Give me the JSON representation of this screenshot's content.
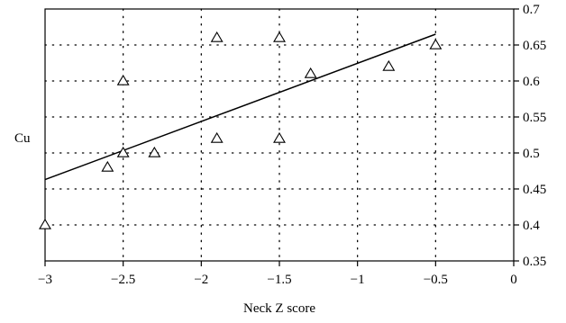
{
  "chart_data": {
    "type": "scatter",
    "title": "",
    "xlabel": "Neck Z score",
    "ylabel": "Cu",
    "xlim": [
      -3,
      0
    ],
    "ylim": [
      0.35,
      0.7
    ],
    "x_ticks": [
      -3,
      -2.5,
      -2,
      -1.5,
      -1,
      -0.5,
      0
    ],
    "x_tick_labels": [
      "−3",
      "−2.5",
      "−2",
      "−1.5",
      "−1",
      "−0.5",
      "0"
    ],
    "y_ticks": [
      0.35,
      0.4,
      0.45,
      0.5,
      0.55,
      0.6,
      0.65,
      0.7
    ],
    "y_tick_labels": [
      "0.35",
      "0.4",
      "0.45",
      "0.5",
      "0.55",
      "0.6",
      "0.65",
      "0.7"
    ],
    "y_axis_side": "right",
    "grid": true,
    "grid_style": "dotted",
    "legend": false,
    "marker": "open-triangle",
    "series": [
      {
        "points": [
          {
            "x": -3.0,
            "y": 0.4
          },
          {
            "x": -2.6,
            "y": 0.48
          },
          {
            "x": -2.5,
            "y": 0.5
          },
          {
            "x": -2.5,
            "y": 0.6
          },
          {
            "x": -2.3,
            "y": 0.5
          },
          {
            "x": -1.9,
            "y": 0.52
          },
          {
            "x": -1.9,
            "y": 0.66
          },
          {
            "x": -1.5,
            "y": 0.52
          },
          {
            "x": -1.5,
            "y": 0.66
          },
          {
            "x": -1.3,
            "y": 0.61
          },
          {
            "x": -0.8,
            "y": 0.62
          },
          {
            "x": -0.5,
            "y": 0.65
          }
        ]
      }
    ],
    "trend_line": {
      "x": [
        -3.0,
        -0.5
      ],
      "y": [
        0.463,
        0.665
      ]
    },
    "colors": {
      "marker": "#000000",
      "line": "#000000",
      "grid": "#000000",
      "axis": "#000000"
    }
  }
}
